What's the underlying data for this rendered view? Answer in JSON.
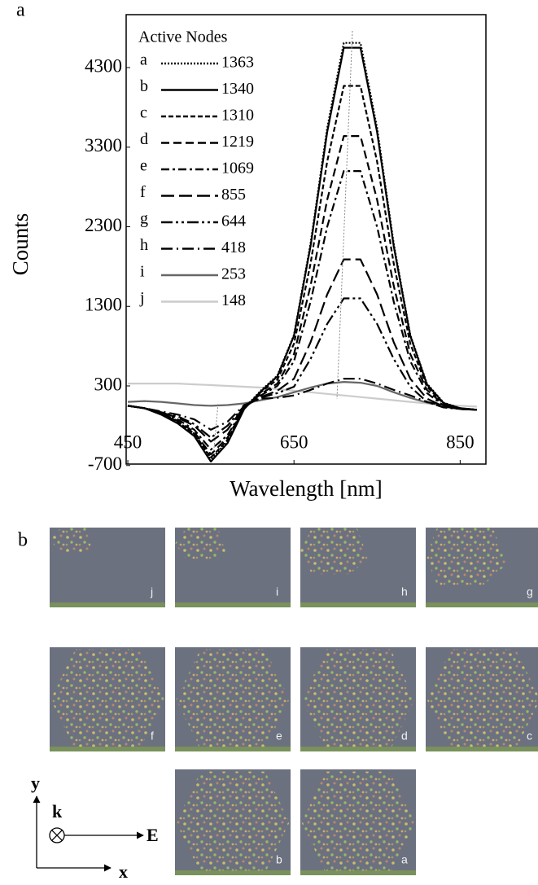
{
  "chart_data": {
    "type": "line",
    "panel_label": "a",
    "x_label": "Wavelength [nm]",
    "y_label": "Counts",
    "legend_title": "Active Nodes",
    "x": [
      450,
      470,
      490,
      510,
      530,
      550,
      570,
      590,
      610,
      630,
      650,
      670,
      690,
      710,
      730,
      750,
      770,
      790,
      810,
      830,
      850,
      870
    ],
    "series": [
      {
        "name": "a",
        "active_nodes": 1363,
        "color": "#000000",
        "dash": "2,2",
        "values": [
          50,
          20,
          -50,
          -150,
          -300,
          -620,
          -400,
          20,
          240,
          430,
          940,
          2090,
          3540,
          4610,
          4610,
          3540,
          2090,
          940,
          330,
          90,
          20,
          0
        ]
      },
      {
        "name": "b",
        "active_nodes": 1340,
        "color": "#000000",
        "dash": "none",
        "values": [
          50,
          20,
          -60,
          -170,
          -330,
          -650,
          -420,
          10,
          230,
          420,
          930,
          2060,
          3490,
          4550,
          4550,
          3490,
          2060,
          930,
          320,
          85,
          20,
          0
        ]
      },
      {
        "name": "c",
        "active_nodes": 1310,
        "color": "#000000",
        "dash": "6,3",
        "values": [
          50,
          20,
          -50,
          -150,
          -300,
          -600,
          -380,
          20,
          220,
          380,
          830,
          1840,
          3120,
          4070,
          4070,
          3120,
          1840,
          830,
          290,
          80,
          15,
          0
        ]
      },
      {
        "name": "d",
        "active_nodes": 1219,
        "color": "#000000",
        "dash": "10,5",
        "values": [
          50,
          20,
          -40,
          -140,
          -280,
          -560,
          -350,
          20,
          200,
          330,
          700,
          1560,
          2640,
          3440,
          3440,
          2640,
          1560,
          700,
          250,
          65,
          15,
          0
        ]
      },
      {
        "name": "e",
        "active_nodes": 1069,
        "color": "#000000",
        "dash": "10,4,3,4",
        "values": [
          50,
          20,
          -40,
          -120,
          -250,
          -500,
          -320,
          30,
          180,
          300,
          610,
          1360,
          2300,
          3000,
          3000,
          2300,
          1360,
          610,
          210,
          55,
          10,
          0
        ]
      },
      {
        "name": "f",
        "active_nodes": 855,
        "color": "#000000",
        "dash": "16,6",
        "values": [
          50,
          20,
          -30,
          -100,
          -200,
          -400,
          -250,
          40,
          160,
          240,
          390,
          850,
          1450,
          1890,
          1890,
          1450,
          850,
          390,
          140,
          40,
          10,
          0
        ]
      },
      {
        "name": "g",
        "active_nodes": 644,
        "color": "#000000",
        "dash": "14,4,3,4,3,4",
        "values": [
          50,
          20,
          -30,
          -80,
          -180,
          -350,
          -200,
          50,
          150,
          210,
          290,
          640,
          1080,
          1400,
          1400,
          1080,
          640,
          290,
          100,
          30,
          10,
          0
        ]
      },
      {
        "name": "h",
        "active_nodes": 418,
        "color": "#000000",
        "dash": "14,5,2,5",
        "values": [
          50,
          20,
          -20,
          -60,
          -120,
          -250,
          -150,
          60,
          140,
          150,
          180,
          250,
          330,
          390,
          390,
          330,
          250,
          180,
          100,
          50,
          20,
          0
        ]
      },
      {
        "name": "i",
        "active_nodes": 253,
        "color": "#666666",
        "dash": "none",
        "values": [
          100,
          110,
          100,
          80,
          60,
          50,
          60,
          80,
          120,
          160,
          220,
          280,
          330,
          350,
          340,
          300,
          220,
          150,
          90,
          50,
          20,
          0
        ]
      },
      {
        "name": "j",
        "active_nodes": 148,
        "color": "#cccccc",
        "dash": "none",
        "values": [
          330,
          330,
          330,
          330,
          320,
          310,
          300,
          290,
          280,
          260,
          240,
          220,
          200,
          180,
          160,
          140,
          120,
          100,
          80,
          60,
          50,
          40
        ]
      }
    ],
    "xlim": [
      448,
      881
    ],
    "ylim": [
      -682,
      4965
    ],
    "xticks": [
      450,
      650,
      850
    ],
    "yticks": [
      -700,
      300,
      1300,
      2300,
      3300,
      4300
    ]
  },
  "panel_b": {
    "panel_label": "b",
    "image_labels": [
      "j",
      "i",
      "h",
      "g",
      "f",
      "e",
      "d",
      "c",
      "b",
      "a"
    ],
    "axes": {
      "y": "y",
      "k": "k",
      "E": "E",
      "x": "x"
    }
  }
}
